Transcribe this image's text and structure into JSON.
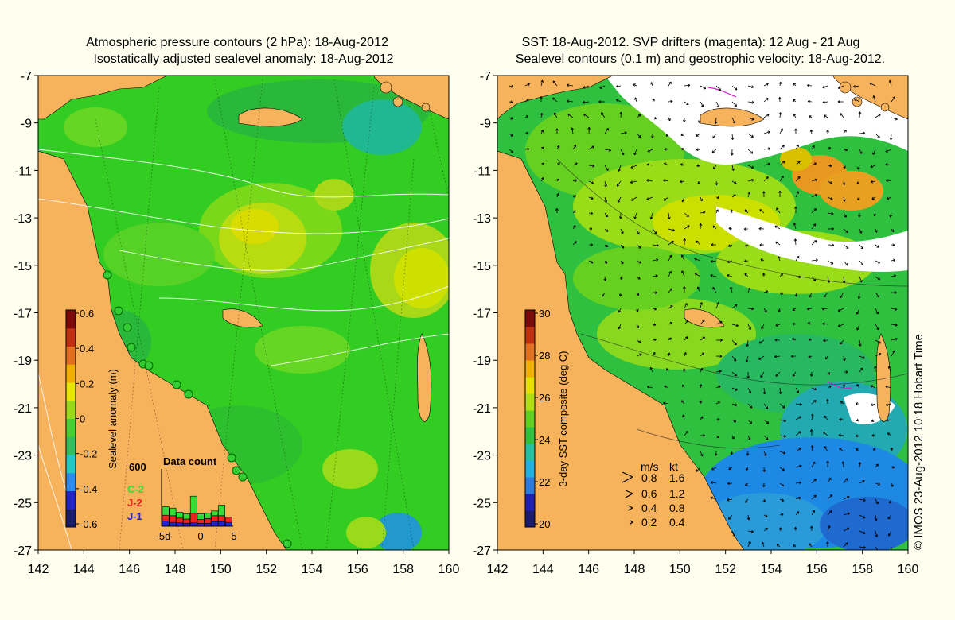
{
  "left_panel": {
    "title_line1": "Atmospheric pressure contours (2 hPa): 18-Aug-2012",
    "title_line2": "Isostatically adjusted sealevel anomaly: 18-Aug-2012",
    "colorbar_label": "Sealevel anomaly (m)",
    "colorbar_ticks": [
      "0.6",
      "0.4",
      "0.2",
      "0",
      "-0.2",
      "-0.4",
      "-0.6"
    ],
    "colorbar_colors": [
      "#1a1a6e",
      "#2222c8",
      "#2a8cf0",
      "#20c8c8",
      "#30c060",
      "#44d030",
      "#9ad81a",
      "#e6e600",
      "#f0b000",
      "#e07020",
      "#c03010",
      "#7a0a0a"
    ],
    "inset": {
      "title": "Data count",
      "y_label": "600",
      "x_ticks": [
        "-5d",
        "0",
        "5"
      ],
      "series": [
        {
          "name": "C-2",
          "color": "#33dd33",
          "values": [
            90,
            80,
            60,
            55,
            180,
            60,
            55,
            50,
            110,
            0
          ]
        },
        {
          "name": "J-2",
          "color": "#ee2020",
          "values": [
            60,
            70,
            50,
            45,
            100,
            40,
            50,
            60,
            60,
            55
          ]
        },
        {
          "name": "J-1",
          "color": "#2222dd",
          "values": [
            55,
            40,
            35,
            30,
            35,
            30,
            30,
            50,
            50,
            40
          ]
        }
      ]
    }
  },
  "right_panel": {
    "title_line1": "SST: 18-Aug-2012. SVP drifters (magenta): 12 Aug - 21 Aug",
    "title_line2": "Sealevel contours (0.1 m) and geostrophic velocity: 18-Aug-2012.",
    "colorbar_label": "3-day SST composite (deg C)",
    "colorbar_ticks": [
      "30",
      "28",
      "26",
      "24",
      "22",
      "20"
    ],
    "colorbar_colors": [
      "#1a1a6e",
      "#2020b0",
      "#2a7ae0",
      "#20b0e0",
      "#20c0a0",
      "#30c040",
      "#60d020",
      "#b0e010",
      "#e8e000",
      "#f0b000",
      "#e07020",
      "#c03010",
      "#7a0a0a"
    ],
    "velocity_legend": {
      "header_ms": "m/s",
      "header_kt": "kt",
      "rows": [
        {
          "ms": "0.8",
          "kt": "1.6"
        },
        {
          "ms": "0.6",
          "kt": "1.2"
        },
        {
          "ms": "0.4",
          "kt": "0.8"
        },
        {
          "ms": "0.2",
          "kt": "0.4"
        }
      ]
    },
    "credit": "© IMOS 23-Aug-2012 10:18 Hobart Time"
  },
  "axes": {
    "lat_ticks": [
      "-7",
      "-9",
      "-11",
      "-13",
      "-15",
      "-17",
      "-19",
      "-21",
      "-23",
      "-25",
      "-27"
    ],
    "lon_ticks": [
      "142",
      "144",
      "146",
      "148",
      "150",
      "152",
      "154",
      "156",
      "158",
      "160"
    ]
  },
  "colors": {
    "land": "#f7b25c",
    "sea_green": "#33cc22",
    "sea_light": "#66dd22",
    "sea_yellow": "#cce000",
    "sea_cyan": "#22bb99",
    "cloud": "#ffffff",
    "cool_blue": "#1e88e5",
    "deep_blue": "#1a1acc"
  }
}
